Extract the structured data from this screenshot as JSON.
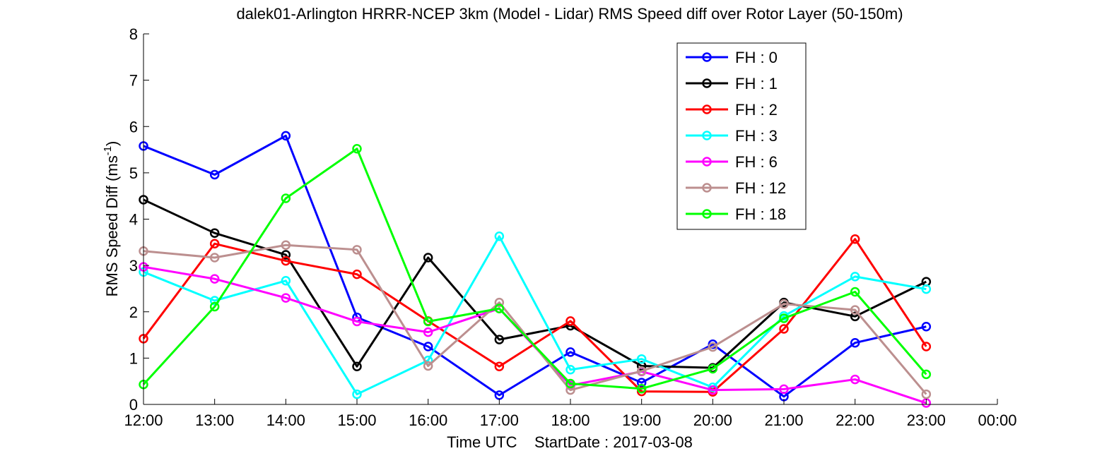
{
  "chart_data": {
    "type": "line",
    "title": "dalek01-Arlington HRRR-NCEP 3km (Model - Lidar) RMS Speed diff over Rotor Layer (50-150m)",
    "xlabel": "Time UTC    StartDate : 2017-03-08",
    "ylabel": "RMS Speed Diff (ms",
    "ylabel_sup": "-1",
    "ylabel_end": ")",
    "xlim": [
      0,
      12
    ],
    "ylim": [
      0,
      8
    ],
    "x_ticks": [
      0,
      1,
      2,
      3,
      4,
      5,
      6,
      7,
      8,
      9,
      10,
      11,
      12
    ],
    "x_tick_labels": [
      "12:00",
      "13:00",
      "14:00",
      "15:00",
      "16:00",
      "17:00",
      "18:00",
      "19:00",
      "20:00",
      "21:00",
      "22:00",
      "23:00",
      "00:00"
    ],
    "y_ticks": [
      0,
      1,
      2,
      3,
      4,
      5,
      6,
      7,
      8
    ],
    "y_tick_labels": [
      "0",
      "1",
      "2",
      "3",
      "4",
      "5",
      "6",
      "7",
      "8"
    ],
    "x": [
      0,
      1,
      2,
      3,
      4,
      5,
      6,
      7,
      8,
      9,
      10,
      11
    ],
    "grid": false,
    "legend_position": "top-right",
    "series": [
      {
        "name": "FH : 0",
        "color": "#0000ff",
        "values": [
          5.58,
          4.96,
          5.8,
          1.88,
          1.25,
          0.2,
          1.13,
          0.47,
          1.3,
          0.17,
          1.33,
          1.68
        ]
      },
      {
        "name": "FH : 1",
        "color": "#000000",
        "values": [
          4.42,
          3.7,
          3.23,
          0.82,
          3.17,
          1.4,
          1.7,
          0.83,
          0.79,
          2.2,
          1.9,
          2.65
        ]
      },
      {
        "name": "FH : 2",
        "color": "#ff0000",
        "values": [
          1.42,
          3.47,
          3.1,
          2.81,
          1.8,
          0.82,
          1.8,
          0.28,
          0.27,
          1.63,
          3.57,
          1.25
        ]
      },
      {
        "name": "FH : 3",
        "color": "#00ffff",
        "values": [
          2.86,
          2.24,
          2.67,
          0.22,
          0.95,
          3.63,
          0.75,
          0.98,
          0.37,
          1.91,
          2.76,
          2.49
        ]
      },
      {
        "name": "FH : 6",
        "color": "#ff00ff",
        "values": [
          2.97,
          2.71,
          2.3,
          1.79,
          1.56,
          2.07,
          0.41,
          0.71,
          0.31,
          0.33,
          0.54,
          0.03
        ]
      },
      {
        "name": "FH : 12",
        "color": "#bc8f8f",
        "values": [
          3.31,
          3.17,
          3.44,
          3.34,
          0.83,
          2.2,
          0.31,
          0.72,
          1.24,
          2.17,
          2.04,
          0.22
        ]
      },
      {
        "name": "FH : 18",
        "color": "#00ff00",
        "values": [
          0.43,
          2.11,
          4.45,
          5.52,
          1.79,
          2.07,
          0.45,
          0.34,
          0.77,
          1.86,
          2.43,
          0.65
        ]
      }
    ]
  }
}
